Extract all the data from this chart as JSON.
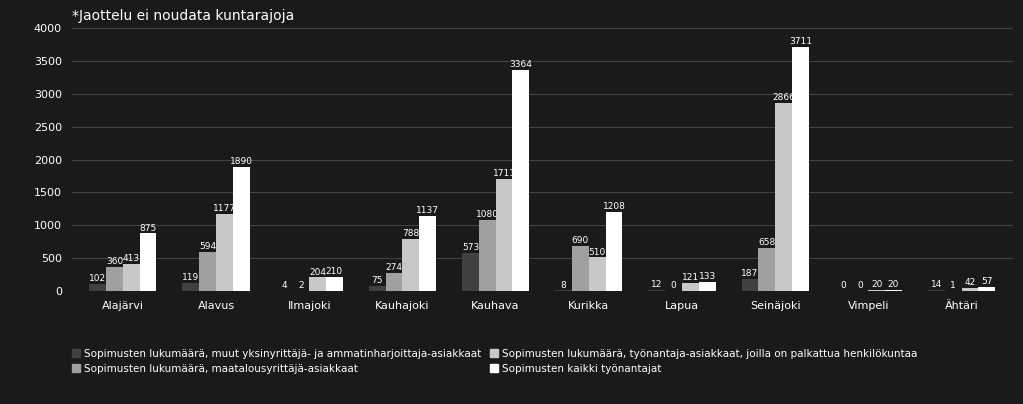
{
  "categories": [
    "Alajärvi",
    "Alavus",
    "Ilmajoki",
    "Kauhajoki",
    "Kauhava",
    "Kurikka",
    "Lapua",
    "Seinäjoki",
    "Vimpeli",
    "Ähtäri"
  ],
  "series": [
    {
      "label": "Sopimusten lukumäärä, muut yksinyrittäjä- ja ammatinharjoittaja-asiakkaat",
      "color": "#404040",
      "values": [
        102,
        119,
        4,
        75,
        573,
        8,
        12,
        187,
        0,
        14
      ]
    },
    {
      "label": "Sopimusten lukumäärä, maatalousyrittäjä-asiakkaat",
      "color": "#a0a0a0",
      "values": [
        360,
        594,
        2,
        274,
        1080,
        690,
        0,
        658,
        0,
        1
      ]
    },
    {
      "label": "Sopimusten lukumäärä, työnantaja-asiakkaat, joilla on palkattua henkilökuntaa",
      "color": "#c8c8c8",
      "values": [
        413,
        1177,
        204,
        788,
        1711,
        510,
        121,
        2866,
        20,
        42
      ]
    },
    {
      "label": "Sopimusten kaikki työnantajat",
      "color": "#ffffff",
      "values": [
        875,
        1890,
        210,
        1137,
        3364,
        1208,
        133,
        3711,
        20,
        57
      ]
    }
  ],
  "title": "*Jaottelu ei noudata kuntarajoja",
  "ylim": [
    0,
    4000
  ],
  "yticks": [
    0,
    500,
    1000,
    1500,
    2000,
    2500,
    3000,
    3500,
    4000
  ],
  "background_color": "#1a1a1a",
  "text_color": "#ffffff",
  "grid_color": "#555555",
  "bar_width": 0.18,
  "title_fontsize": 10,
  "tick_fontsize": 8,
  "legend_fontsize": 7.5,
  "value_fontsize": 6.5
}
